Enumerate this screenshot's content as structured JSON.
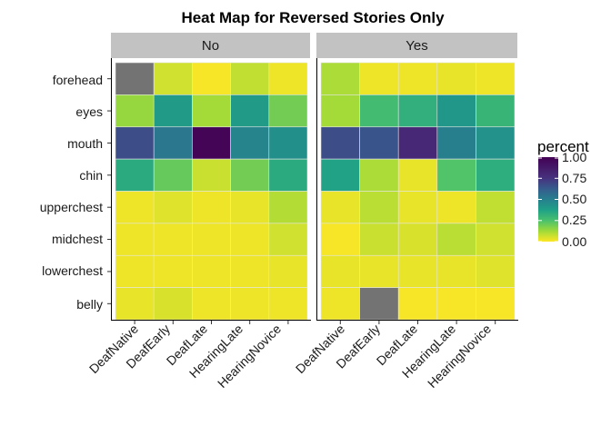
{
  "chart_data": {
    "type": "heatmap",
    "title": "Heat Map for Reversed Stories Only",
    "facets": [
      {
        "label": "No",
        "x_categories": [
          "DeafNative",
          "DeafEarly",
          "DeafLate",
          "HearingLate",
          "HearingNovice"
        ],
        "y_categories": [
          "forehead",
          "eyes",
          "mouth",
          "chin",
          "upperchest",
          "midchest",
          "lowerchest",
          "belly"
        ],
        "values": [
          [
            null,
            0.06,
            0.01,
            0.08,
            0.02
          ],
          [
            0.14,
            0.4,
            0.12,
            0.4,
            0.19
          ],
          [
            0.67,
            0.53,
            0.98,
            0.48,
            0.44
          ],
          [
            0.34,
            0.21,
            0.07,
            0.19,
            0.34
          ],
          [
            0.02,
            0.04,
            0.02,
            0.03,
            0.1
          ],
          [
            0.02,
            0.02,
            0.02,
            0.02,
            0.06
          ],
          [
            0.02,
            0.02,
            0.02,
            0.02,
            0.03
          ],
          [
            0.03,
            0.05,
            0.02,
            0.02,
            0.02
          ]
        ]
      },
      {
        "label": "Yes",
        "x_categories": [
          "DeafNative",
          "DeafEarly",
          "DeafLate",
          "HearingLate",
          "HearingNovice"
        ],
        "y_categories": [
          "forehead",
          "eyes",
          "mouth",
          "chin",
          "upperchest",
          "midchest",
          "lowerchest",
          "belly"
        ],
        "values": [
          [
            0.11,
            0.02,
            0.02,
            0.03,
            0.02
          ],
          [
            0.12,
            0.27,
            0.32,
            0.41,
            0.3
          ],
          [
            0.67,
            0.65,
            0.8,
            0.5,
            0.43
          ],
          [
            0.37,
            0.11,
            0.03,
            0.24,
            0.33
          ],
          [
            0.03,
            0.09,
            0.03,
            0.02,
            0.08
          ],
          [
            0.01,
            0.07,
            0.05,
            0.09,
            0.06
          ],
          [
            0.03,
            0.03,
            0.03,
            0.03,
            0.04
          ],
          [
            0.02,
            null,
            0.01,
            0.01,
            0.01
          ]
        ]
      }
    ],
    "legend": {
      "title": "percent",
      "ticks": [
        "1.00",
        "0.75",
        "0.50",
        "0.25",
        "0.00"
      ],
      "tick_values": [
        1.0,
        0.75,
        0.5,
        0.25,
        0.0
      ],
      "range": [
        0,
        1
      ],
      "colormap": "viridis (reversed)",
      "na_color": "#737373"
    },
    "strip_color": "#c2c2c2",
    "xlabel": "",
    "ylabel": ""
  }
}
